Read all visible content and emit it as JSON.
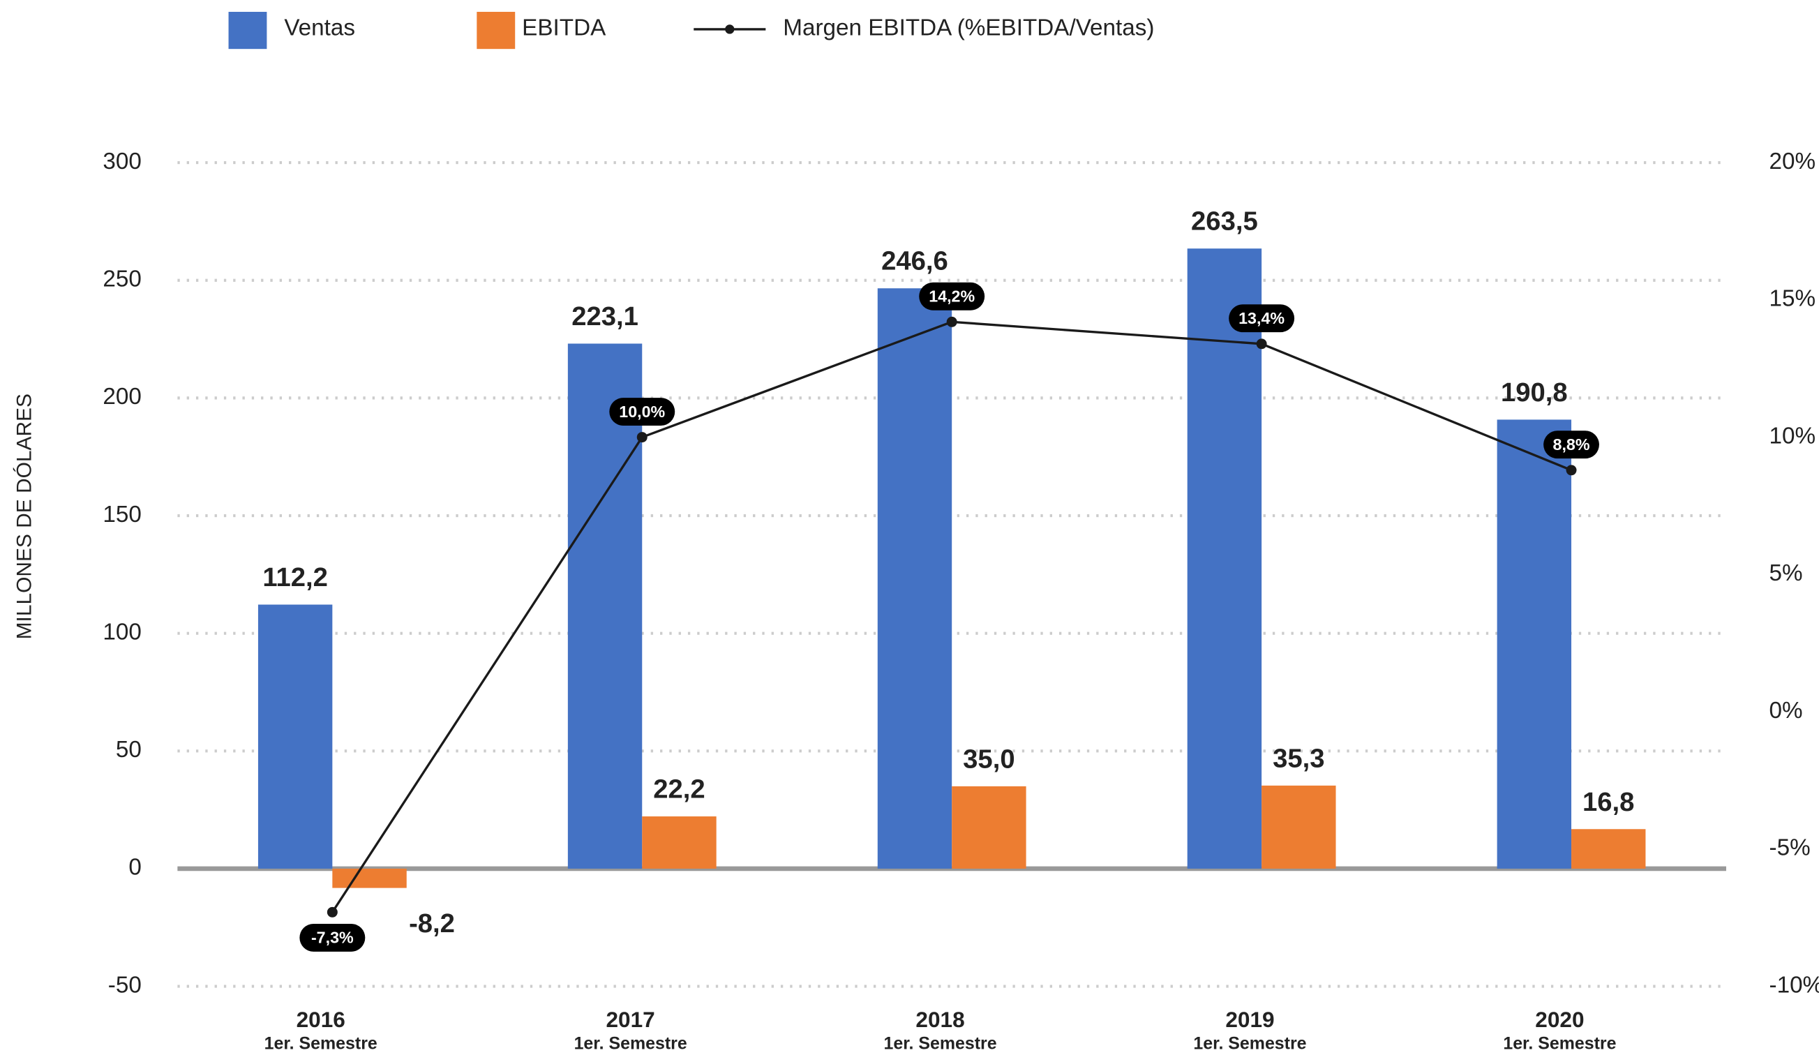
{
  "chart_data": {
    "type": "bar",
    "categories": [
      [
        "2016",
        "1er. Semestre"
      ],
      [
        "2017",
        "1er. Semestre"
      ],
      [
        "2018",
        "1er. Semestre"
      ],
      [
        "2019",
        "1er. Semestre"
      ],
      [
        "2020",
        "1er. Semestre"
      ]
    ],
    "ylabel": "MILLONES DE DÓLARES",
    "ylim": [
      -50,
      300
    ],
    "yticks": [
      -50,
      0,
      50,
      100,
      150,
      200,
      250,
      300
    ],
    "y2lim": [
      -10,
      20
    ],
    "y2ticks": [
      {
        "value": -10,
        "label": "-10%"
      },
      {
        "value": -5,
        "label": "-5%"
      },
      {
        "value": 0,
        "label": "0%"
      },
      {
        "value": 5,
        "label": "5%"
      },
      {
        "value": 10,
        "label": "10%"
      },
      {
        "value": 15,
        "label": "15%"
      },
      {
        "value": 20,
        "label": "20%"
      }
    ],
    "grid": true,
    "series": [
      {
        "name": "Ventas",
        "type": "bar",
        "color": "#4472c4",
        "values": [
          112.2,
          223.1,
          246.6,
          263.5,
          190.8
        ],
        "value_labels": [
          "112,2",
          "223,1",
          "246,6",
          "263,5",
          "190,8"
        ]
      },
      {
        "name": "EBITDA",
        "type": "bar",
        "color": "#ed7d31",
        "values": [
          -8.2,
          22.2,
          35.0,
          35.3,
          16.8
        ],
        "value_labels": [
          "-8,2",
          "22,2",
          "35,0",
          "35,3",
          "16,8"
        ]
      },
      {
        "name": "Margen EBITDA (%EBITDA/Ventas)",
        "type": "line",
        "axis": "y2",
        "color": "#1a1a1a",
        "values": [
          -7.3,
          10.0,
          14.2,
          13.4,
          8.8
        ],
        "value_labels": [
          "-7,3%",
          "10,0%",
          "14,2%",
          "13,4%",
          "8,8%"
        ]
      }
    ]
  }
}
